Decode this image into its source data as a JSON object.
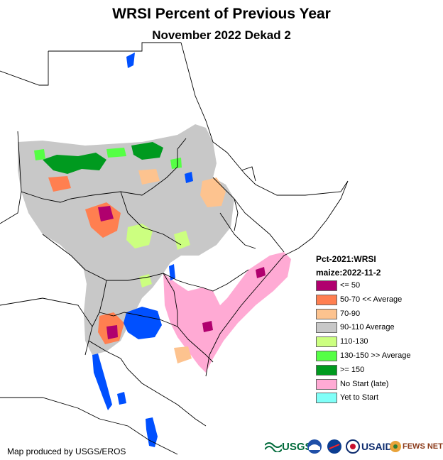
{
  "title": "WRSI Percent of Previous Year",
  "subtitle": "November 2022 Dekad 2",
  "legend": {
    "title_line1": "Pct-2021:WRSI",
    "title_line2": "maize:2022-11-2",
    "items": [
      {
        "label": "<= 50",
        "color": "#b0006e"
      },
      {
        "label": "50-70 << Average",
        "color": "#ff7f50"
      },
      {
        "label": "70-90",
        "color": "#fdc38f"
      },
      {
        "label": "90-110 Average",
        "color": "#c8c8c8"
      },
      {
        "label": "110-130",
        "color": "#ccff80"
      },
      {
        "label": "130-150 >> Average",
        "color": "#55ff45"
      },
      {
        "label": ">= 150",
        "color": "#009a1f"
      },
      {
        "label": "No Start (late)",
        "color": "#ffaad4"
      },
      {
        "label": "Yet to Start",
        "color": "#80fff8"
      }
    ]
  },
  "credit": "Map produced by USGS/EROS",
  "logos": {
    "usgs": "USGS",
    "usaid": "USAID",
    "fewsnet": "FEWS NET"
  },
  "colors": {
    "water": "#0050ff",
    "border": "#000000"
  }
}
